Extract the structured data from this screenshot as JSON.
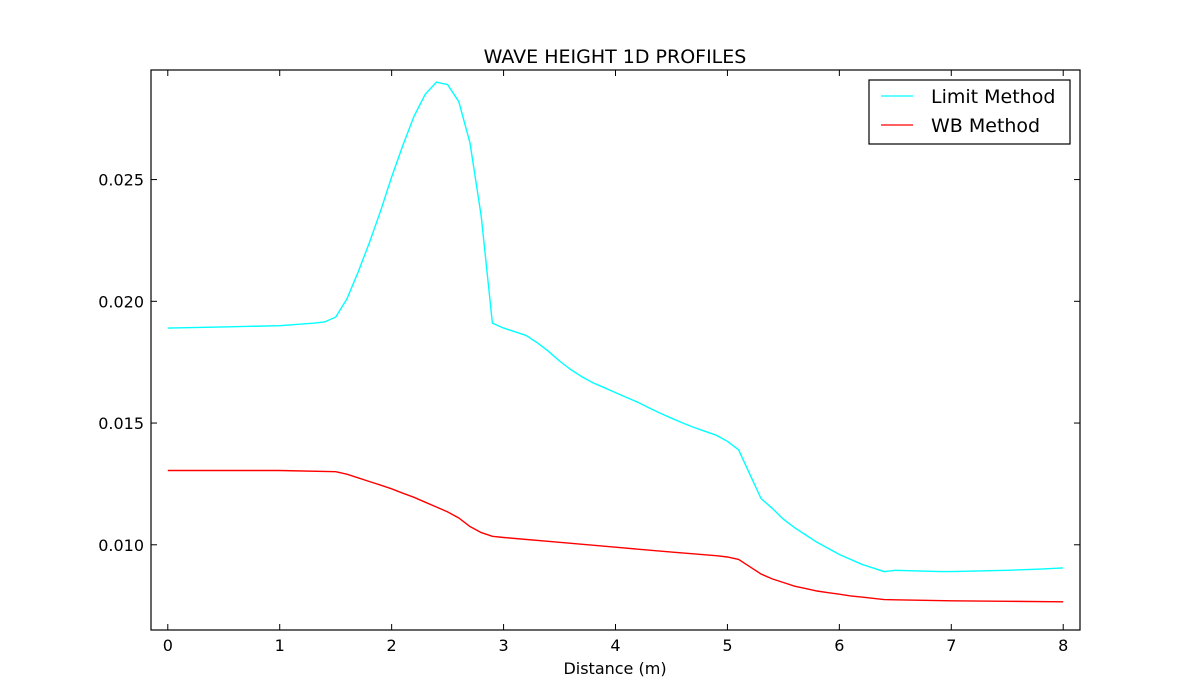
{
  "chart_data": {
    "type": "line",
    "title": "WAVE HEIGHT 1D PROFILES",
    "xlabel": "Distance (m)",
    "ylabel": "",
    "xlim": [
      -0.15,
      8.15
    ],
    "ylim": [
      0.0065,
      0.0295
    ],
    "xticks": [
      0,
      1,
      2,
      3,
      4,
      5,
      6,
      7,
      8
    ],
    "xtick_labels": [
      "0",
      "1",
      "2",
      "3",
      "4",
      "5",
      "6",
      "7",
      "8"
    ],
    "yticks": [
      0.01,
      0.015,
      0.02,
      0.025
    ],
    "ytick_labels": [
      "0.010",
      "0.015",
      "0.020",
      "0.025"
    ],
    "grid": false,
    "legend_position": "top-right",
    "series": [
      {
        "name": "Limit Method",
        "color": "#00ffff",
        "x": [
          0,
          0.5,
          1.0,
          1.3,
          1.4,
          1.5,
          1.6,
          1.7,
          1.8,
          1.9,
          2.0,
          2.1,
          2.2,
          2.3,
          2.4,
          2.5,
          2.6,
          2.7,
          2.8,
          2.9,
          3.0,
          3.1,
          3.2,
          3.3,
          3.4,
          3.5,
          3.6,
          3.7,
          3.8,
          3.9,
          4.0,
          4.1,
          4.2,
          4.3,
          4.4,
          4.5,
          4.6,
          4.7,
          4.8,
          4.9,
          5.0,
          5.1,
          5.2,
          5.3,
          5.4,
          5.5,
          5.6,
          5.7,
          5.8,
          5.9,
          6.0,
          6.1,
          6.2,
          6.3,
          6.4,
          6.5,
          6.9,
          7.0,
          7.5,
          7.8,
          8.0
        ],
        "values": [
          0.0189,
          0.01895,
          0.019,
          0.0191,
          0.01915,
          0.01935,
          0.0201,
          0.0212,
          0.0224,
          0.0237,
          0.0251,
          0.0264,
          0.0276,
          0.0285,
          0.029,
          0.0289,
          0.0282,
          0.0265,
          0.0235,
          0.0191,
          0.0189,
          0.01875,
          0.0186,
          0.0183,
          0.01795,
          0.01755,
          0.0172,
          0.0169,
          0.01665,
          0.01645,
          0.01625,
          0.01605,
          0.01585,
          0.01562,
          0.0154,
          0.0152,
          0.015,
          0.01482,
          0.01466,
          0.0145,
          0.01425,
          0.0139,
          0.0129,
          0.0119,
          0.0115,
          0.01105,
          0.0107,
          0.0104,
          0.0101,
          0.00985,
          0.0096,
          0.0094,
          0.0092,
          0.00905,
          0.0089,
          0.00895,
          0.0089,
          0.0089,
          0.00895,
          0.009,
          0.00905
        ]
      },
      {
        "name": "WB Method",
        "color": "#ff0000",
        "x": [
          0,
          0.5,
          1.0,
          1.5,
          1.6,
          1.7,
          1.8,
          1.9,
          2.0,
          2.1,
          2.2,
          2.3,
          2.4,
          2.5,
          2.6,
          2.7,
          2.8,
          2.9,
          3.0,
          3.5,
          4.0,
          4.5,
          4.9,
          5.0,
          5.1,
          5.2,
          5.3,
          5.4,
          5.5,
          5.6,
          5.7,
          5.8,
          5.9,
          6.0,
          6.1,
          6.2,
          6.3,
          6.4,
          6.5,
          7.0,
          7.5,
          8.0
        ],
        "values": [
          0.01305,
          0.01305,
          0.01305,
          0.013,
          0.0129,
          0.01275,
          0.0126,
          0.01245,
          0.0123,
          0.01212,
          0.01195,
          0.01175,
          0.01155,
          0.01135,
          0.0111,
          0.01075,
          0.0105,
          0.01035,
          0.0103,
          0.0101,
          0.0099,
          0.0097,
          0.00955,
          0.0095,
          0.0094,
          0.0091,
          0.0088,
          0.0086,
          0.00845,
          0.0083,
          0.0082,
          0.0081,
          0.00803,
          0.00797,
          0.0079,
          0.00785,
          0.0078,
          0.00775,
          0.00774,
          0.0077,
          0.00768,
          0.00766
        ]
      }
    ]
  }
}
